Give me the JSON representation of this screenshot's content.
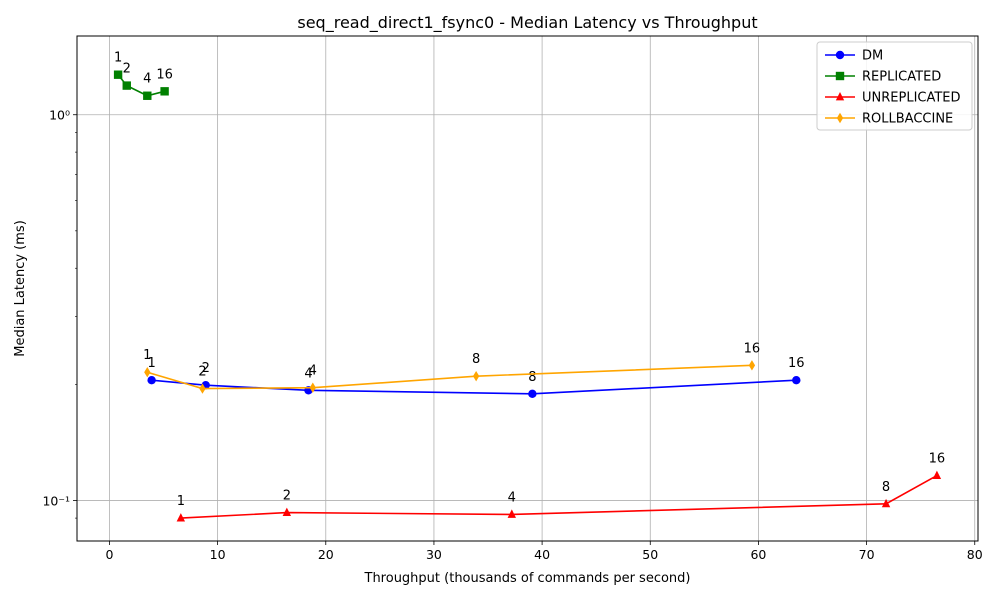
{
  "chart_data": {
    "type": "line",
    "title": "seq_read_direct1_fsync0 - Median Latency vs Throughput",
    "xlabel": "Throughput (thousands of commands per second)",
    "ylabel": "Median Latency (ms)",
    "xlim": [
      -3,
      80.3
    ],
    "ylim": [
      0.0785,
      1.6
    ],
    "yscale": "log",
    "xticks": [
      0,
      10,
      20,
      30,
      40,
      50,
      60,
      70,
      80
    ],
    "xtick_labels": [
      "0",
      "10",
      "20",
      "30",
      "40",
      "50",
      "60",
      "70",
      "80"
    ],
    "yticks": [
      0.1,
      1
    ],
    "ytick_labels": [
      "10⁻¹",
      "10⁰"
    ],
    "grid": true,
    "legend_position": "top-right",
    "series": [
      {
        "name": "DM",
        "color": "#0000ff",
        "marker": "circle",
        "x": [
          3.9,
          8.9,
          18.4,
          39.1,
          63.5
        ],
        "y": [
          0.205,
          0.199,
          0.193,
          0.189,
          0.205
        ],
        "labels": [
          "1",
          "2",
          "4",
          "8",
          "16"
        ]
      },
      {
        "name": "REPLICATED",
        "color": "#008000",
        "marker": "square",
        "x": [
          0.8,
          1.6,
          3.5,
          5.1
        ],
        "y": [
          1.27,
          1.19,
          1.12,
          1.15
        ],
        "labels": [
          "1",
          "2",
          "4",
          "16"
        ]
      },
      {
        "name": "UNREPLICATED",
        "color": "#ff0000",
        "marker": "triangle",
        "x": [
          6.6,
          16.4,
          37.2,
          71.8,
          76.5
        ],
        "y": [
          0.09,
          0.093,
          0.092,
          0.098,
          0.116
        ],
        "labels": [
          "1",
          "2",
          "4",
          "8",
          "16"
        ]
      },
      {
        "name": "ROLLBACCINE",
        "color": "#ffa500",
        "marker": "diamond",
        "x": [
          3.5,
          8.6,
          18.8,
          33.9,
          59.4
        ],
        "y": [
          0.215,
          0.195,
          0.196,
          0.21,
          0.224
        ],
        "labels": [
          "1",
          "2",
          "4",
          "8",
          "16"
        ]
      }
    ]
  }
}
